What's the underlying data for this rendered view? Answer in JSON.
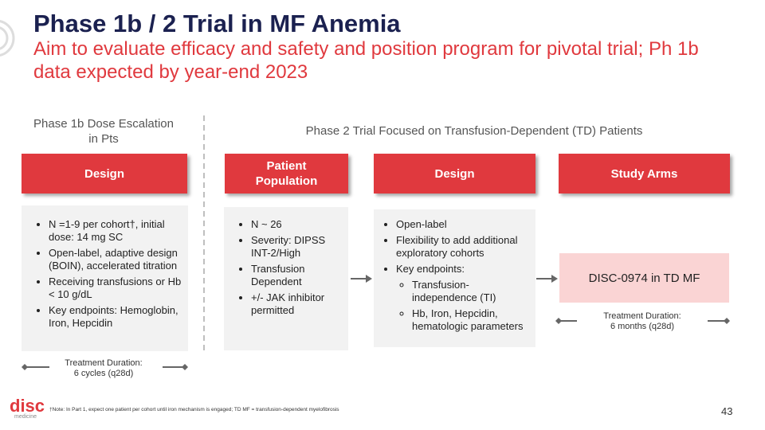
{
  "header": {
    "title": "Phase 1b / 2 Trial in MF Anemia",
    "subtitle": "Aim to evaluate efficacy and safety and position program for pivotal trial; Ph 1b data expected by year-end 2023"
  },
  "phase1b": {
    "label": "Phase 1b Dose Escalation in Pts",
    "heading": "Design",
    "bullets": [
      "N =1-9 per cohort†, initial dose: 14 mg SC",
      "Open-label, adaptive design (BOIN), accelerated titration",
      "Receiving transfusions or Hb < 10 g/dL",
      "Key endpoints: Hemoglobin, Iron, Hepcidin"
    ],
    "duration_label": "Treatment Duration:",
    "duration_value": "6 cycles (q28d)"
  },
  "phase2": {
    "label": "Phase 2 Trial Focused on Transfusion-Dependent (TD) Patients",
    "population": {
      "heading": "Patient Population",
      "bullets": [
        "N ~ 26",
        "Severity: DIPSS INT-2/High",
        "Transfusion Dependent",
        "+/- JAK inhibitor permitted"
      ]
    },
    "design": {
      "heading": "Design",
      "bullets": [
        "Open-label",
        "Flexibility to add additional exploratory cohorts",
        "Key endpoints:"
      ],
      "sub_bullets": [
        "Transfusion-independence (TI)",
        "Hb, Iron, Hepcidin, hematologic parameters"
      ]
    },
    "study_arms": {
      "heading": "Study Arms",
      "arm": "DISC-0974 in TD MF",
      "duration_label": "Treatment Duration:",
      "duration_value": "6 months (q28d)"
    }
  },
  "footer": {
    "logo": "disc",
    "logo_sub": "medicine",
    "note": "†Note: In Part 1, expect one patient per cohort until iron mechanism is engaged; TD MF = transfusion-dependent myelofibrosis",
    "page_number": "43"
  }
}
